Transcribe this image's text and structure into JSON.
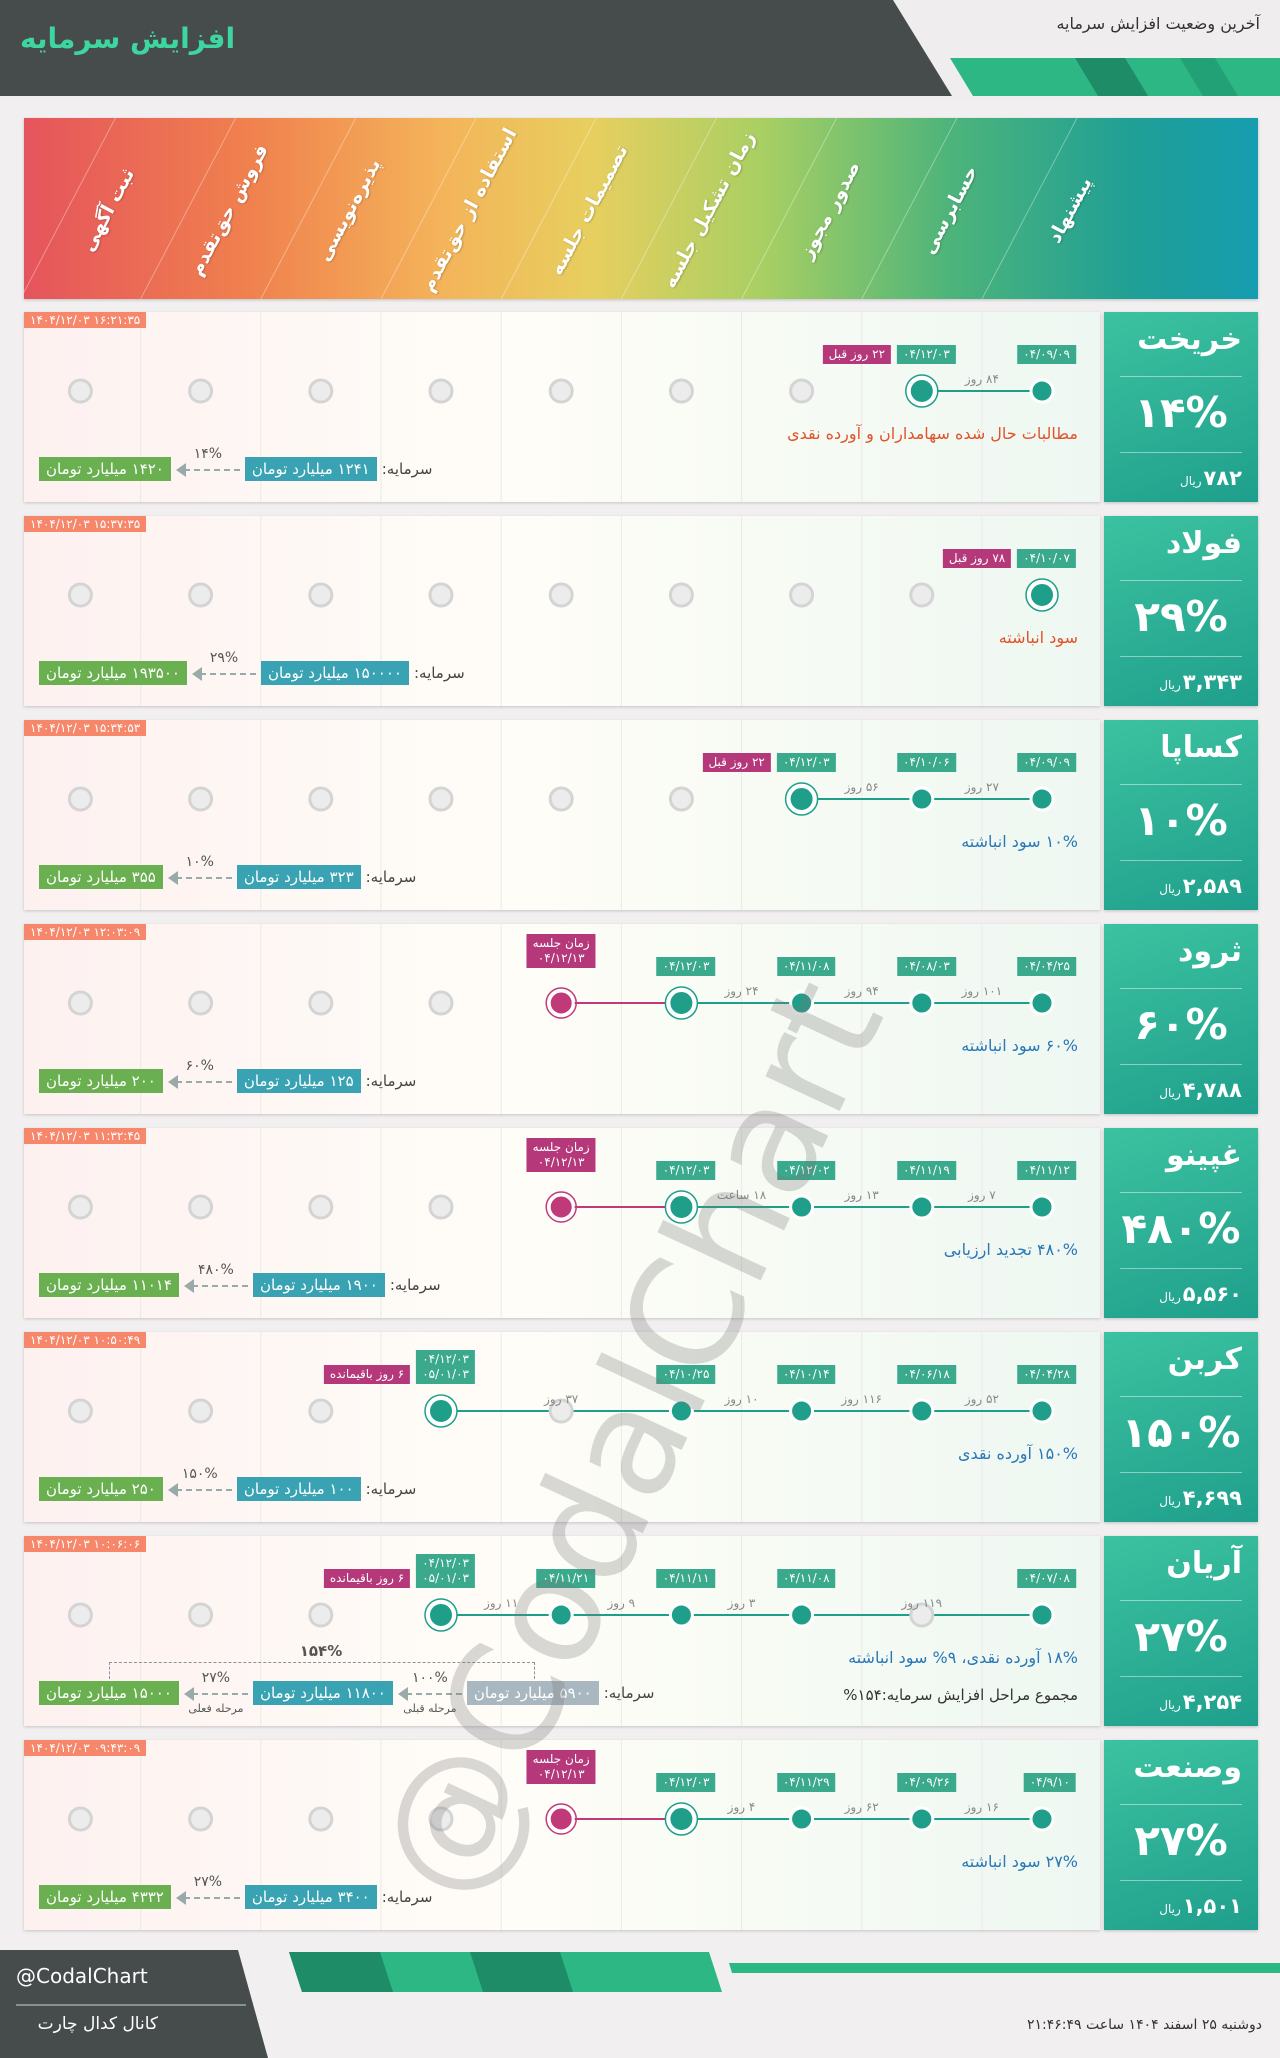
{
  "header": {
    "title": "افزایش سرمایه",
    "subtitle": "آخرین وضعیت افزایش سرمایه"
  },
  "stages": [
    "پیشنهاد",
    "حسابرسی",
    "صدور مجوز",
    "زمان تشکیل جلسه",
    "تصمیمات جلسه",
    "استفاده از حق‌تقدم",
    "پذیره‌نویسی",
    "فروش حق‌تقدم",
    "ثبت آگهی"
  ],
  "companies": [
    {
      "name": "خریخت",
      "percent": "۱۴%",
      "price": "۷۸۲",
      "currency": "ریال",
      "timestamp": "۱۴۰۴/۱۲/۰۳ ۱۶:۲۱:۳۵",
      "stages": [
        {
          "dates": [
            "۰۴/۰۹/۰۹"
          ]
        },
        {
          "dates": [
            "۰۴/۱۲/۰۳"
          ],
          "gap": "۸۴ روز",
          "badge": "۲۲ روز قبل"
        },
        null,
        null,
        null,
        null,
        null,
        null,
        null
      ],
      "note": "مطالبات حال شده سهامداران و آورده نقدی",
      "note_color": "#e0542a",
      "capital": {
        "label": "سرمایه:",
        "from": "۱۲۴۱ میلیارد تومان",
        "steps": [
          {
            "pct": "۱۴%",
            "amount": "۱۴۲۰ میلیارد تومان"
          }
        ]
      }
    },
    {
      "name": "فولاد",
      "percent": "۲۹%",
      "price": "۳,۳۴۳",
      "currency": "ریال",
      "timestamp": "۱۴۰۴/۱۲/۰۳ ۱۵:۳۷:۳۵",
      "stages": [
        {
          "dates": [
            "۰۴/۱۰/۰۷"
          ],
          "badge": "۷۸ روز قبل"
        },
        null,
        null,
        null,
        null,
        null,
        null,
        null,
        null
      ],
      "note": "سود انباشته",
      "note_color": "#e0542a",
      "capital": {
        "label": "سرمایه:",
        "from": "۱۵۰۰۰۰ میلیارد تومان",
        "steps": [
          {
            "pct": "۲۹%",
            "amount": "۱۹۳۵۰۰ میلیارد تومان"
          }
        ]
      }
    },
    {
      "name": "کساپا",
      "percent": "۱۰%",
      "price": "۲,۵۸۹",
      "currency": "ریال",
      "timestamp": "۱۴۰۴/۱۲/۰۳ ۱۵:۳۴:۵۳",
      "stages": [
        {
          "dates": [
            "۰۴/۰۹/۰۹"
          ]
        },
        {
          "dates": [
            "۰۴/۱۰/۰۶"
          ],
          "gap": "۲۷ روز"
        },
        {
          "dates": [
            "۰۴/۱۲/۰۳"
          ],
          "gap": "۵۶ روز",
          "badge": "۲۲ روز قبل"
        },
        null,
        null,
        null,
        null,
        null,
        null
      ],
      "note": "۱۰% سود انباشته",
      "note_color": "#2a78b8",
      "capital": {
        "label": "سرمایه:",
        "from": "۳۲۳ میلیارد تومان",
        "steps": [
          {
            "pct": "۱۰%",
            "amount": "۳۵۵ میلیارد تومان"
          }
        ]
      }
    },
    {
      "name": "ثرود",
      "percent": "۶۰%",
      "price": "۴,۷۸۸",
      "currency": "ریال",
      "timestamp": "۱۴۰۴/۱۲/۰۳ ۱۲:۰۳:۰۹",
      "stages": [
        {
          "dates": [
            "۰۴/۰۴/۲۵"
          ]
        },
        {
          "dates": [
            "۰۴/۰۸/۰۳"
          ],
          "gap": "۱۰۱ روز"
        },
        {
          "dates": [
            "۰۴/۱۱/۰۸"
          ],
          "gap": "۹۴ روز"
        },
        {
          "dates": [
            "۰۴/۱۲/۰۳"
          ],
          "gap": "۲۴ روز"
        },
        {
          "label": "زمان جلسه",
          "dates": [
            "۰۴/۱۲/۱۳"
          ]
        },
        null,
        null,
        null,
        null
      ],
      "note": "۶۰% سود انباشته",
      "note_color": "#2a78b8",
      "capital": {
        "label": "سرمایه:",
        "from": "۱۲۵ میلیارد تومان",
        "steps": [
          {
            "pct": "۶۰%",
            "amount": "۲۰۰ میلیارد تومان"
          }
        ]
      }
    },
    {
      "name": "غپینو",
      "percent": "۴۸۰%",
      "price": "۵,۵۶۰",
      "currency": "ریال",
      "timestamp": "۱۴۰۴/۱۲/۰۳ ۱۱:۳۲:۴۵",
      "stages": [
        {
          "dates": [
            "۰۴/۱۱/۱۲"
          ]
        },
        {
          "dates": [
            "۰۴/۱۱/۱۹"
          ],
          "gap": "۷ روز"
        },
        {
          "dates": [
            "۰۴/۱۲/۰۲"
          ],
          "gap": "۱۳ روز"
        },
        {
          "dates": [
            "۰۴/۱۲/۰۳"
          ],
          "gap": "۱۸ ساعت"
        },
        {
          "label": "زمان جلسه",
          "dates": [
            "۰۴/۱۲/۱۳"
          ]
        },
        null,
        null,
        null,
        null
      ],
      "note": "۴۸۰% تجدید ارزیابی",
      "note_color": "#2a78b8",
      "capital": {
        "label": "سرمایه:",
        "from": "۱۹۰۰ میلیارد تومان",
        "steps": [
          {
            "pct": "۴۸۰%",
            "amount": "۱۱۰۱۴ میلیارد تومان"
          }
        ]
      }
    },
    {
      "name": "کربن",
      "percent": "۱۵۰%",
      "price": "۴,۶۹۹",
      "currency": "ریال",
      "timestamp": "۱۴۰۴/۱۲/۰۳ ۱۰:۵۰:۴۹",
      "stages": [
        {
          "dates": [
            "۰۴/۰۴/۲۸"
          ]
        },
        {
          "dates": [
            "۰۴/۰۶/۱۸"
          ],
          "gap": "۵۲ روز"
        },
        {
          "dates": [
            "۰۴/۱۰/۱۴"
          ],
          "gap": "۱۱۶ روز"
        },
        {
          "dates": [
            "۰۴/۱۰/۲۵"
          ],
          "gap": "۱۰ روز"
        },
        null,
        {
          "dates": [
            "۰۴/۱۲/۰۳",
            "۰۵/۰۱/۰۳"
          ],
          "gap": "۳۷ روز",
          "badge": "۶ روز باقیمانده"
        },
        null,
        null,
        null
      ],
      "note": "۱۵۰% آورده نقدی",
      "note_color": "#2a78b8",
      "capital": {
        "label": "سرمایه:",
        "from": "۱۰۰ میلیارد تومان",
        "steps": [
          {
            "pct": "۱۵۰%",
            "amount": "۲۵۰ میلیارد تومان"
          }
        ]
      }
    },
    {
      "name": "آریان",
      "percent": "۲۷%",
      "price": "۴,۲۵۴",
      "currency": "ریال",
      "timestamp": "۱۴۰۴/۱۲/۰۳ ۱۰:۰۶:۰۶",
      "stages": [
        {
          "dates": [
            "۰۴/۰۷/۰۸"
          ]
        },
        null,
        {
          "dates": [
            "۰۴/۱۱/۰۸"
          ],
          "gap": "۱۱۹ روز"
        },
        {
          "dates": [
            "۰۴/۱۱/۱۱"
          ],
          "gap": "۳ روز"
        },
        {
          "dates": [
            "۰۴/۱۱/۲۱"
          ],
          "gap": "۹ روز"
        },
        {
          "dates": [
            "۰۴/۱۲/۰۳",
            "۰۵/۰۱/۰۳"
          ],
          "gap": "۱۱ روز",
          "badge": "۶ روز باقیمانده"
        },
        null,
        null,
        null
      ],
      "note": "۱۸% آورده نقدی، ۹% سود انباشته",
      "note_color": "#2a78b8",
      "summary": "مجموع مراحل افزایش سرمایه:۱۵۴%",
      "capital": {
        "label": "سرمایه:",
        "from": "۵۹۰۰ میلیارد تومان",
        "steps": [
          {
            "pct": "۱۰۰%",
            "caption": "مرحله قبلی",
            "amount": "۱۱۸۰۰ میلیارد تومان"
          },
          {
            "pct": "۲۷%",
            "caption": "مرحله فعلی",
            "amount": "۱۵۰۰۰ میلیارد تومان"
          }
        ],
        "total": "۱۵۴%"
      }
    },
    {
      "name": "وصنعت",
      "percent": "۲۷%",
      "price": "۱,۵۰۱",
      "currency": "ریال",
      "timestamp": "۱۴۰۴/۱۲/۰۳ ۰۹:۴۳:۰۹",
      "stages": [
        {
          "dates": [
            "۰۴/۹/۱۰"
          ]
        },
        {
          "dates": [
            "۰۴/۰۹/۲۶"
          ],
          "gap": "۱۶ روز"
        },
        {
          "dates": [
            "۰۴/۱۱/۲۹"
          ],
          "gap": "۶۲ روز"
        },
        {
          "dates": [
            "۰۴/۱۲/۰۳"
          ],
          "gap": "۴ روز"
        },
        {
          "label": "زمان جلسه",
          "dates": [
            "۰۴/۱۲/۱۳"
          ]
        },
        null,
        null,
        null,
        null
      ],
      "note": "۲۷% سود انباشته",
      "note_color": "#2a78b8",
      "capital": {
        "label": "سرمایه:",
        "from": "۳۴۰۰ میلیارد تومان",
        "steps": [
          {
            "pct": "۲۷%",
            "amount": "۴۳۳۲ میلیارد تومان"
          }
        ]
      }
    }
  ],
  "watermark": "@CodalChart",
  "footer": {
    "handle": "@CodalChart",
    "channel": "کانال کدال چارت",
    "date": "دوشنبه ۲۵ اسفند ۱۴۰۴ ساعت ۲۱:۴۶:۴۹"
  }
}
